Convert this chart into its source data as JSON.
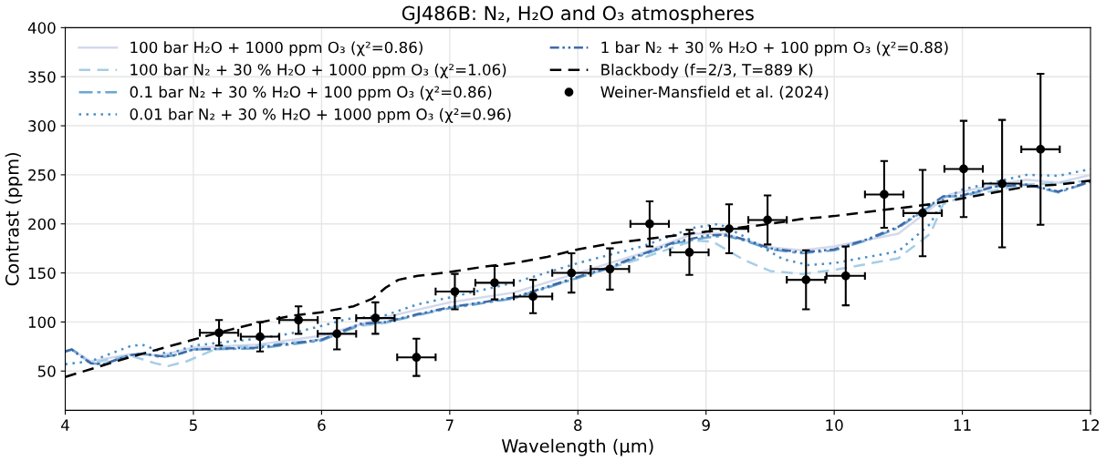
{
  "chart_data": {
    "type": "line",
    "title": "GJ486B: N₂, H₂O and O₃ atmospheres",
    "xlabel": "Wavelength (µm)",
    "ylabel": "Contrast (ppm)",
    "xlim": [
      4,
      12
    ],
    "ylim": [
      10,
      400
    ],
    "xticks": [
      4,
      5,
      6,
      7,
      8,
      9,
      10,
      11,
      12
    ],
    "yticks": [
      50,
      100,
      150,
      200,
      250,
      300,
      350,
      400
    ],
    "grid": true,
    "legend": "top left",
    "marker": "none",
    "series": [
      {
        "name": "100 bar H₂O + 1000 ppm O₃ (χ²=0.86)",
        "color": "#d4d9ec",
        "line_style": "solid",
        "x": [
          4,
          4.05,
          4.2,
          4.5,
          4.75,
          5,
          5.5,
          6,
          6.5,
          7,
          7.5,
          8,
          8.5,
          8.9,
          9.15,
          9.5,
          9.75,
          10,
          10.5,
          10.75,
          10.9,
          11.25,
          11.5,
          11.75,
          12
        ],
        "values": [
          70,
          72,
          60,
          67,
          66,
          74,
          77,
          86,
          105,
          120,
          130,
          150,
          170,
          190,
          190,
          176,
          173,
          177,
          190,
          215,
          230,
          240,
          245,
          242,
          250
        ]
      },
      {
        "name": "100 bar N₂ + 30 % H₂O + 1000 ppm O₃ (χ²=1.06)",
        "color": "#a6cde6",
        "line_style": "dashed",
        "x": [
          4,
          4.05,
          4.2,
          4.5,
          4.7,
          4.8,
          4.95,
          5.2,
          5.5,
          6,
          6.3,
          6.5,
          7,
          7.5,
          8,
          8.5,
          8.9,
          9.05,
          9.3,
          9.5,
          9.75,
          10,
          10.5,
          10.75,
          10.85,
          11,
          11.5,
          12
        ],
        "values": [
          70,
          72,
          58,
          66,
          58,
          55,
          60,
          74,
          76,
          82,
          96,
          99,
          115,
          125,
          145,
          165,
          183,
          182,
          163,
          152,
          149,
          153,
          165,
          190,
          220,
          228,
          240,
          244
        ]
      },
      {
        "name": "0.1 bar N₂ + 30 % H₂O + 100 ppm O₃ (χ²=0.86)",
        "color": "#6aa7d3",
        "line_style": "dashdot",
        "x": [
          4,
          4.05,
          4.1,
          4.2,
          4.3,
          4.5,
          4.6,
          4.75,
          4.85,
          5,
          5.5,
          6,
          6.3,
          6.5,
          6.75,
          7,
          7.5,
          8,
          8.25,
          8.5,
          8.75,
          9,
          9.15,
          9.3,
          9.5,
          9.75,
          10,
          10.25,
          10.5,
          10.75,
          10.85,
          11,
          11.25,
          11.5,
          11.75,
          12
        ],
        "values": [
          70,
          72,
          68,
          58,
          57,
          66,
          68,
          64,
          66,
          72,
          73,
          81,
          97,
          100,
          107,
          114,
          124,
          145,
          155,
          168,
          180,
          186,
          188,
          183,
          174,
          170,
          173,
          183,
          196,
          218,
          228,
          228,
          238,
          240,
          232,
          243
        ]
      },
      {
        "name": "0.01 bar N₂ + 30 % H₂O + 1000 ppm O₃ (χ²=0.96)",
        "color": "#4a8ec8",
        "line_style": "dotted",
        "x": [
          4,
          4.2,
          4.5,
          4.6,
          4.8,
          5,
          5.5,
          5.75,
          6,
          6.2,
          6.5,
          6.75,
          7,
          7.5,
          8,
          8.5,
          8.9,
          9.1,
          9.3,
          9.6,
          9.8,
          10,
          10.5,
          10.75,
          10.85,
          11,
          11.5,
          11.75,
          12
        ],
        "values": [
          57,
          60,
          75,
          77,
          67,
          76,
          83,
          88,
          96,
          103,
          107,
          118,
          125,
          140,
          160,
          177,
          196,
          200,
          187,
          164,
          158,
          160,
          172,
          200,
          225,
          235,
          250,
          249,
          256
        ]
      },
      {
        "name": "1 bar N₂ + 30 % H₂O + 100 ppm O₃ (χ²=0.88)",
        "color": "#3f6aa8",
        "line_style": "dashdotdot",
        "x": [
          4,
          4.05,
          4.1,
          4.2,
          4.3,
          4.5,
          4.6,
          4.75,
          4.85,
          5,
          5.5,
          6,
          6.3,
          6.5,
          6.75,
          7,
          7.5,
          8,
          8.25,
          8.5,
          8.75,
          9,
          9.15,
          9.3,
          9.5,
          9.75,
          10,
          10.25,
          10.5,
          10.75,
          10.85,
          11,
          11.25,
          11.5,
          11.75,
          12
        ],
        "values": [
          70,
          72,
          67,
          58,
          57,
          66,
          68,
          65,
          66,
          72,
          74,
          82,
          98,
          100,
          108,
          115,
          125,
          146,
          156,
          169,
          181,
          188,
          189,
          184,
          175,
          171,
          174,
          184,
          197,
          219,
          228,
          229,
          238,
          240,
          233,
          243
        ]
      },
      {
        "name": "Blackbody (f=2/3, T=889 K)",
        "color": "#000000",
        "line_style": "dashed",
        "x": [
          4,
          4.25,
          4.5,
          4.75,
          5,
          5.25,
          5.5,
          5.75,
          6,
          6.25,
          6.4,
          6.5,
          6.6,
          6.75,
          7,
          7.25,
          7.5,
          7.75,
          8,
          8.25,
          8.5,
          8.75,
          9,
          9.25,
          9.5,
          9.75,
          10,
          10.25,
          10.5,
          10.75,
          11,
          11.25,
          11.5,
          11.75,
          12
        ],
        "values": [
          44,
          54,
          64,
          73,
          82,
          91,
          99,
          106,
          110,
          116,
          124,
          135,
          143,
          147,
          151,
          156,
          160,
          166,
          174,
          180,
          184,
          188,
          192,
          196,
          200,
          205,
          208,
          212,
          216,
          220,
          226,
          232,
          238,
          240,
          244
        ]
      },
      {
        "name": "Weiner-Mansfield et al. (2024)",
        "type": "scatter",
        "marker": "circle",
        "color": "#000000",
        "x": [
          5.2,
          5.52,
          5.82,
          6.12,
          6.42,
          6.74,
          7.04,
          7.35,
          7.65,
          7.95,
          8.25,
          8.56,
          8.87,
          9.18,
          9.48,
          9.78,
          10.09,
          10.39,
          10.69,
          11.01,
          11.31,
          11.61
        ],
        "values": [
          89,
          85,
          102,
          88,
          104,
          64,
          131,
          140,
          126,
          150,
          154,
          200,
          171,
          195,
          204,
          143,
          147,
          230,
          211,
          256,
          241,
          276
        ],
        "errors": [
          13,
          15,
          14,
          16,
          16,
          19,
          18,
          17,
          17,
          20,
          21,
          23,
          23,
          25,
          25,
          30,
          30,
          34,
          44,
          49,
          65,
          77
        ],
        "xerrors": [
          0.15,
          0.15,
          0.15,
          0.15,
          0.15,
          0.15,
          0.15,
          0.15,
          0.15,
          0.15,
          0.15,
          0.15,
          0.15,
          0.15,
          0.15,
          0.15,
          0.15,
          0.15,
          0.15,
          0.15,
          0.15,
          0.15
        ]
      }
    ]
  }
}
